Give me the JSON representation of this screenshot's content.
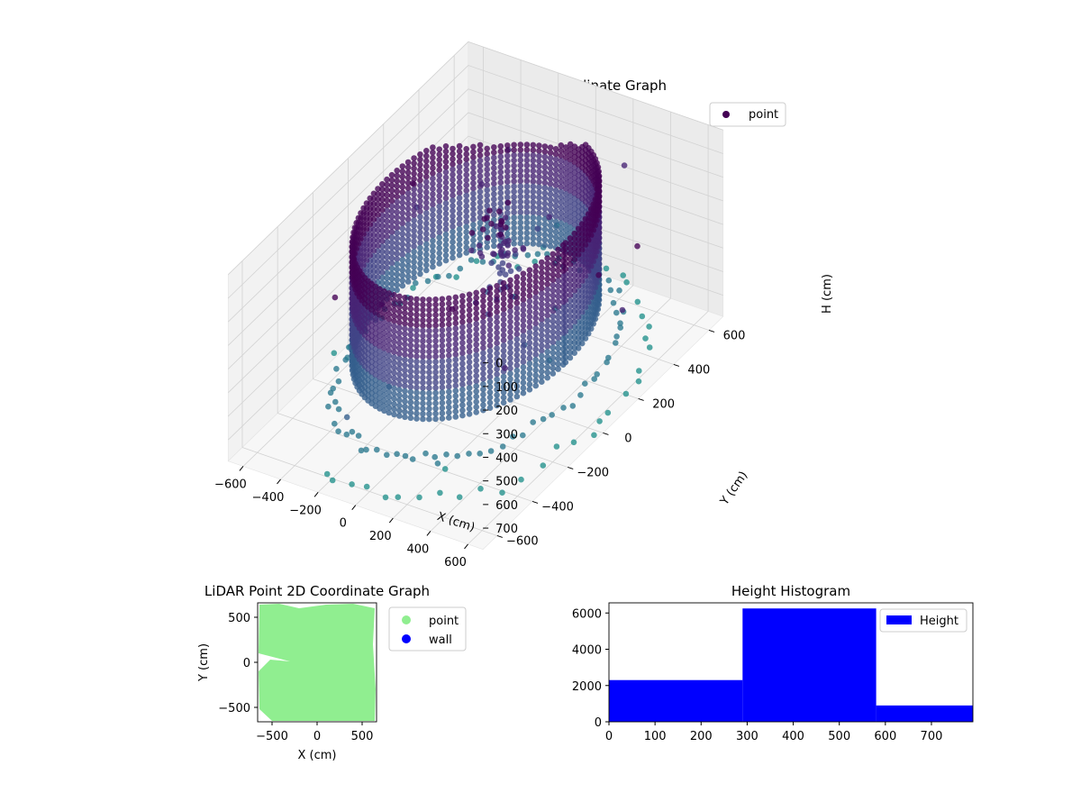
{
  "chart_data": [
    {
      "type": "scatter",
      "subtype": "3d-scatter",
      "title": "LiDAR Point 3D Coordinate Graph",
      "xlabel": "X (cm)",
      "ylabel": "Y (cm)",
      "zlabel": "H (cm)",
      "xlim": [
        -680,
        680
      ],
      "ylim": [
        -680,
        680
      ],
      "zlim": [
        0,
        790
      ],
      "z_inverted": true,
      "xticks": [
        "−600",
        "−400",
        "−200",
        "0",
        "200",
        "400",
        "600"
      ],
      "yticks": [
        "−600",
        "−400",
        "−200",
        "0",
        "200",
        "400",
        "600"
      ],
      "zticks": [
        "0",
        "100",
        "200",
        "300",
        "400",
        "500",
        "600",
        "700"
      ],
      "colormap": "viridis (colored by height)",
      "grid": true,
      "legend": {
        "position": "top-right",
        "entries": [
          {
            "label": "point",
            "color": "#440154"
          }
        ]
      },
      "structures": {
        "cylinder_wall": {
          "radius_cm": 480,
          "height_range_cm": [
            40,
            560
          ]
        },
        "ground_rings": [
          {
            "radius_cm": 560,
            "height_cm": 660
          },
          {
            "radius_cm": 640,
            "height_cm": 730
          }
        ],
        "inner_feature": {
          "location": "center",
          "height_range_cm": [
            100,
            450
          ]
        }
      }
    },
    {
      "type": "scatter",
      "title": "LiDAR Point 2D Coordinate Graph",
      "xlabel": "X (cm)",
      "ylabel": "Y (cm)",
      "xlim": [
        -660,
        660
      ],
      "ylim": [
        -660,
        660
      ],
      "xticks": [
        "−500",
        "0",
        "500"
      ],
      "yticks": [
        "−500",
        "0",
        "500"
      ],
      "series": [
        {
          "name": "point",
          "color": "#90ee90"
        },
        {
          "name": "wall",
          "color": "#0000ff"
        }
      ],
      "legend": {
        "position": "outside-right"
      }
    },
    {
      "type": "bar",
      "subtype": "histogram",
      "title": "Height Histogram",
      "bin_edges": [
        0,
        290,
        580,
        790
      ],
      "values": [
        2300,
        6250,
        900
      ],
      "color": "#0000ff",
      "xlim": [
        0,
        790
      ],
      "ylim": [
        0,
        6560
      ],
      "xticks": [
        "0",
        "100",
        "200",
        "300",
        "400",
        "500",
        "600",
        "700"
      ],
      "yticks": [
        "0",
        "2000",
        "4000",
        "6000"
      ],
      "legend": {
        "position": "top-right",
        "entries": [
          {
            "label": "Height",
            "color": "#0000ff"
          }
        ]
      }
    }
  ]
}
